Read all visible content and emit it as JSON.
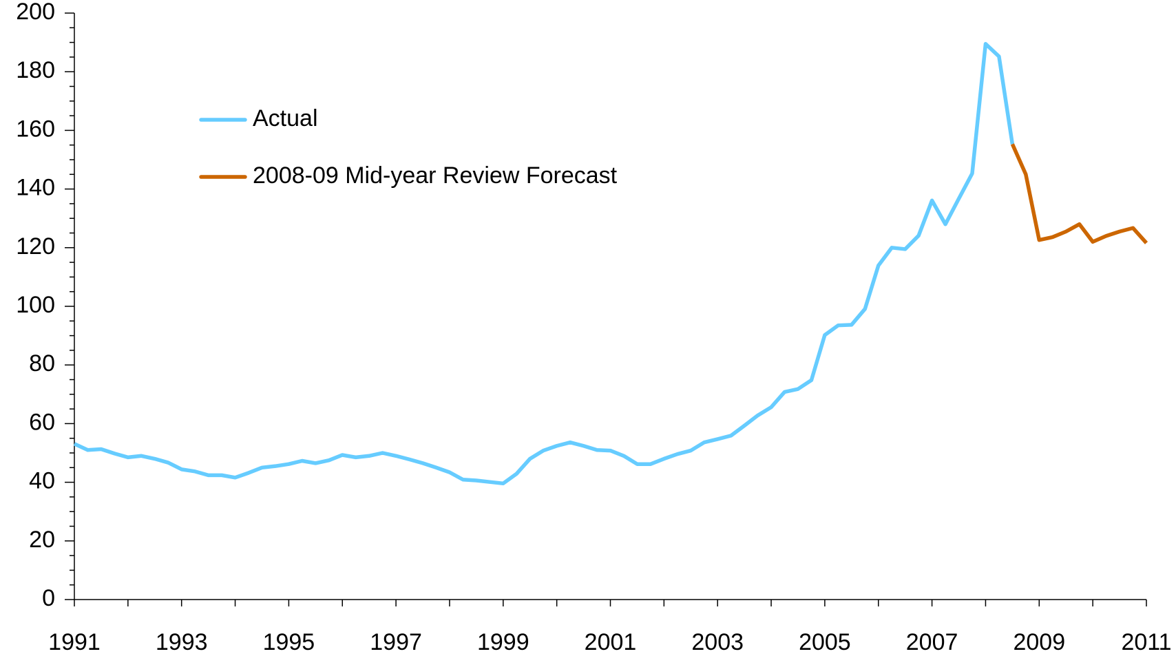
{
  "chart_data": {
    "type": "line",
    "xlim": [
      1991,
      2011
    ],
    "xticks": [
      1991,
      1993,
      1995,
      1997,
      1999,
      2001,
      2003,
      2005,
      2007,
      2009,
      2011
    ],
    "ylim": [
      0,
      200
    ],
    "yticks": [
      0,
      20,
      40,
      60,
      80,
      100,
      120,
      140,
      160,
      180,
      200
    ],
    "legend": "upper left",
    "series": [
      {
        "name": "Actual",
        "color": "#66ccff",
        "x": [
          1991,
          1991.25,
          1991.5,
          1991.75,
          1992,
          1992.25,
          1992.5,
          1992.75,
          1993,
          1993.25,
          1993.5,
          1993.75,
          1994,
          1994.25,
          1994.5,
          1994.75,
          1995,
          1995.25,
          1995.5,
          1995.75,
          1996,
          1996.25,
          1996.5,
          1996.75,
          1997,
          1997.25,
          1997.5,
          1997.75,
          1998,
          1998.25,
          1998.5,
          1998.75,
          1999,
          1999.25,
          1999.5,
          1999.75,
          2000,
          2000.25,
          2000.5,
          2000.75,
          2001,
          2001.25,
          2001.5,
          2001.75,
          2002,
          2002.25,
          2002.5,
          2002.75,
          2003,
          2003.25,
          2003.5,
          2003.75,
          2004,
          2004.25,
          2004.5,
          2004.75,
          2005,
          2005.25,
          2005.5,
          2005.75,
          2006,
          2006.25,
          2006.5,
          2006.75,
          2007,
          2007.25,
          2007.5,
          2007.75,
          2008,
          2008.25,
          2008.5
        ],
        "values": [
          53.1,
          51,
          51.3,
          49.8,
          48.5,
          49,
          48,
          46.7,
          44.4,
          43.7,
          42.4,
          42.4,
          41.6,
          43.2,
          45,
          45.5,
          46.2,
          47.3,
          46.5,
          47.5,
          49.3,
          48.5,
          49,
          50,
          49,
          47.8,
          46.5,
          45,
          43.4,
          40.9,
          40.6,
          40.1,
          39.6,
          42.9,
          48,
          50.8,
          52.4,
          53.6,
          52.4,
          51,
          50.8,
          49,
          46.2,
          46.2,
          48,
          49.6,
          50.8,
          53.6,
          54.7,
          55.9,
          59.3,
          62.8,
          65.6,
          70.8,
          71.8,
          74.8,
          90.2,
          93.5,
          93.7,
          99.1,
          113.9,
          120,
          119.5,
          124.1,
          136.1,
          128,
          136.7,
          145.3,
          189.5,
          185.2,
          155.3
        ]
      },
      {
        "name": "2008-09 Mid-year Review Forecast",
        "color": "#cc6600",
        "x": [
          2008.5,
          2008.75,
          2009,
          2009.25,
          2009.5,
          2009.75,
          2010,
          2010.25,
          2010.5,
          2010.75,
          2011
        ],
        "values": [
          155.3,
          145,
          122.6,
          123.6,
          125.5,
          128,
          122,
          124,
          125.5,
          126.7,
          121.6
        ]
      }
    ]
  }
}
